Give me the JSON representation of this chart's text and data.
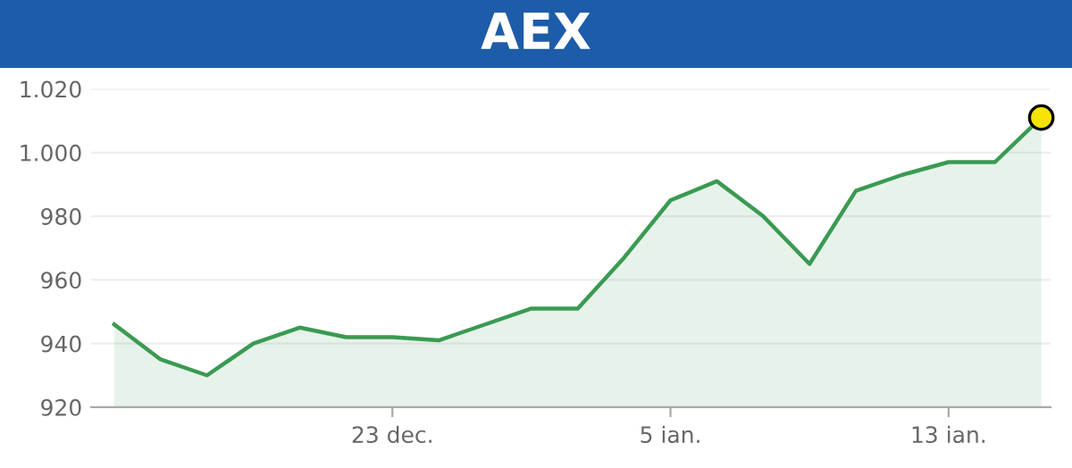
{
  "chart_data": {
    "type": "area",
    "title": "AEX",
    "categories": [
      null,
      null,
      null,
      null,
      null,
      null,
      "23 dec.",
      null,
      null,
      null,
      null,
      null,
      "5 ian.",
      null,
      null,
      null,
      null,
      null,
      "13 ian.",
      null,
      null
    ],
    "series": [
      {
        "color": "#3a9a52",
        "values": [
          946,
          935,
          930,
          940,
          945,
          942,
          942,
          941,
          946,
          951,
          951,
          967,
          985,
          991,
          980,
          965,
          988,
          993,
          997,
          997,
          1011
        ]
      },
      {
        "type": "scatter",
        "marker": "circle",
        "color": "#f5e400",
        "values": [
          null,
          null,
          null,
          null,
          null,
          null,
          null,
          null,
          null,
          null,
          null,
          null,
          null,
          null,
          null,
          null,
          null,
          null,
          null,
          null,
          1011
        ]
      }
    ],
    "ylim": [
      920,
      1020
    ],
    "yticks": [
      920,
      940,
      960,
      980,
      {
        "value": 1000,
        "label": "1.000"
      },
      {
        "value": 1020,
        "label": "1.020"
      }
    ],
    "grid": "y",
    "marker": "none"
  }
}
